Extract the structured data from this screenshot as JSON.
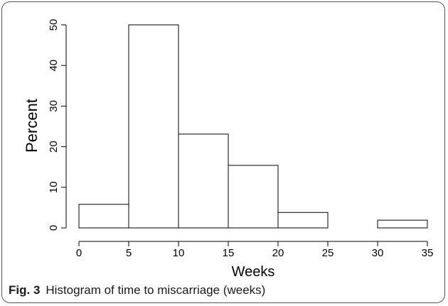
{
  "chart_data": {
    "type": "bar",
    "subtype": "histogram",
    "bins": [
      {
        "start": 0,
        "end": 5,
        "value": 5.8
      },
      {
        "start": 5,
        "end": 10,
        "value": 50
      },
      {
        "start": 10,
        "end": 15,
        "value": 23.1
      },
      {
        "start": 15,
        "end": 20,
        "value": 15.4
      },
      {
        "start": 20,
        "end": 25,
        "value": 3.8
      },
      {
        "start": 25,
        "end": 30,
        "value": 0
      },
      {
        "start": 30,
        "end": 35,
        "value": 1.9
      }
    ],
    "xlabel": "Weeks",
    "ylabel": "Percent",
    "xlim": [
      0,
      35
    ],
    "ylim": [
      0,
      50
    ],
    "xticks": [
      0,
      5,
      10,
      15,
      20,
      25,
      30,
      35
    ],
    "yticks": [
      0,
      10,
      20,
      30,
      40,
      50
    ],
    "grid": false,
    "legend": "none",
    "colors": {
      "bar_fill": "#ffffff",
      "bar_edge": "#000000",
      "text": "#000000"
    }
  },
  "caption": {
    "label": "Fig. 3",
    "text": "Histogram of time to miscarriage (weeks)"
  }
}
